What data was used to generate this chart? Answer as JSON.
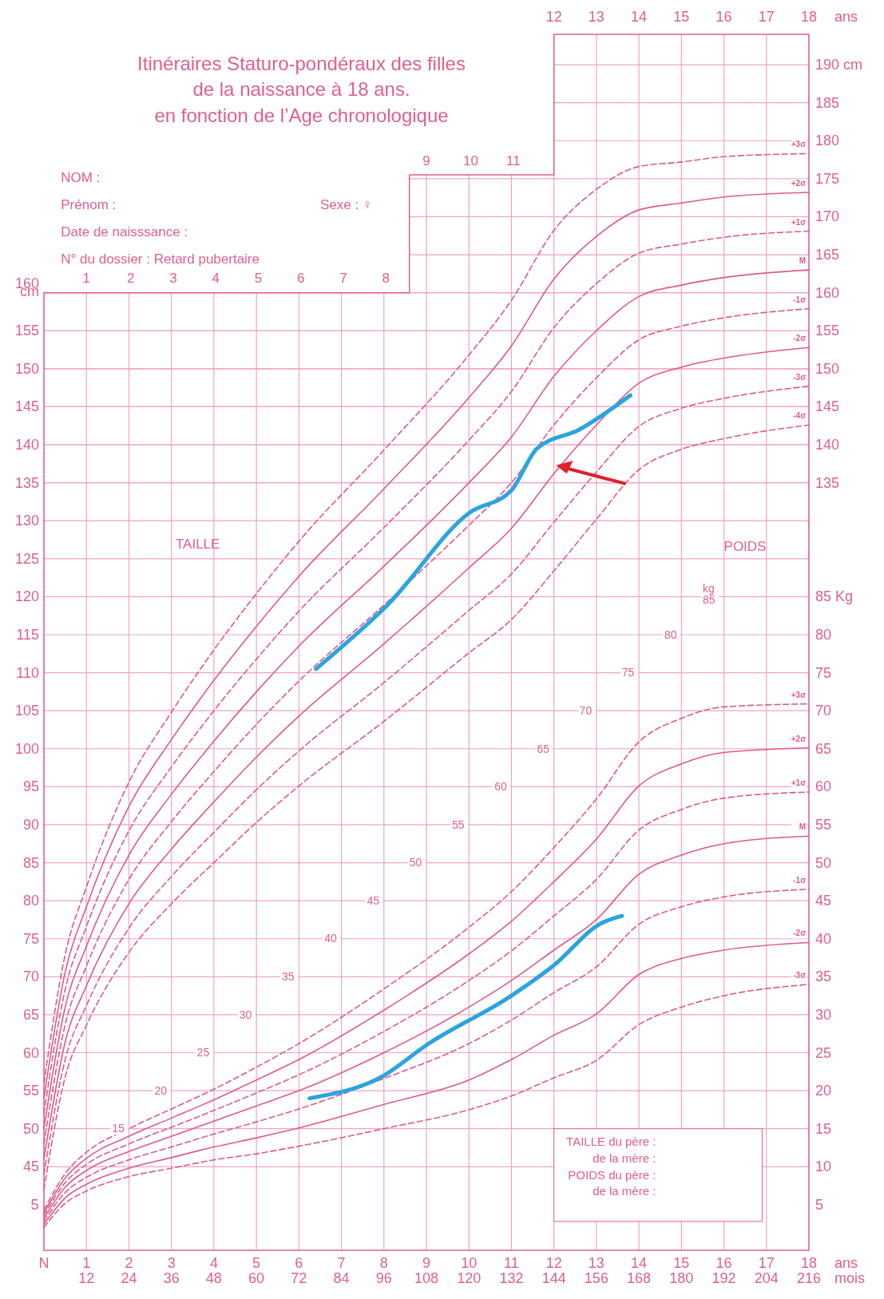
{
  "chart_data": {
    "type": "line",
    "title": "Itinéraires Staturo-pondéraux des filles\nde la naissance à 18 ans.\nen fonction de l’Age chronologique",
    "x": [
      0,
      0.5,
      1,
      2,
      3,
      4,
      5,
      6,
      8,
      10,
      11,
      12,
      13,
      14,
      15,
      16,
      18
    ],
    "xlim": [
      0,
      18
    ],
    "ylim": [
      34,
      194
    ],
    "y2lim": [
      -1,
      159
    ],
    "y3lim": [
      34,
      194
    ],
    "x2lim": [
      0,
      18
    ],
    "xlabel": "ans",
    "x2label": "ans",
    "xticks": [
      {
        "value": 0,
        "label": "N"
      },
      1,
      2,
      3,
      4,
      5,
      6,
      7,
      8,
      9,
      10,
      11,
      12,
      13,
      14,
      15,
      16,
      17,
      18
    ],
    "x2ticks": [
      12,
      13,
      14,
      15,
      16,
      17,
      18
    ],
    "yticks": [
      45,
      50,
      55,
      60,
      65,
      70,
      75,
      80,
      85,
      90,
      95,
      100,
      105,
      110,
      115,
      120,
      125,
      130,
      135,
      140,
      145,
      150,
      155,
      {
        "value": 160,
        "label": "160\ncm"
      }
    ],
    "y3ticks": [
      135,
      140,
      145,
      150,
      155,
      160,
      165,
      170,
      175,
      180,
      185,
      {
        "value": 190,
        "label": "190 cm"
      }
    ],
    "y2ticks": [
      5,
      10,
      15,
      20,
      25,
      30,
      35,
      40,
      45,
      50,
      55,
      60,
      65,
      70,
      75,
      80,
      {
        "value": 85,
        "label": "85 Kg"
      }
    ],
    "grid": true,
    "marker": "none",
    "series": [
      {
        "name": "+3σ",
        "color": "#de5a8a",
        "line_style": "dashed",
        "values": [
          56,
          72.9,
          81.8,
          95.6,
          104.8,
          113,
          120.4,
          127.3,
          139.3,
          151.8,
          159,
          168.2,
          173.6,
          176.6,
          177.2,
          177.9,
          178.3
        ]
      },
      {
        "name": "+2σ",
        "color": "#de5a8a",
        "line_style": "solid",
        "values": [
          54,
          70.6,
          79.2,
          92.4,
          101.2,
          109,
          116.1,
          122.7,
          134.2,
          146.2,
          153,
          161.8,
          167.4,
          170.9,
          171.8,
          172.6,
          173.2
        ]
      },
      {
        "name": "+1σ",
        "color": "#de5a8a",
        "line_style": "dashed",
        "values": [
          52,
          68.3,
          76.6,
          89.2,
          97.6,
          105,
          111.8,
          118.1,
          129.1,
          140.6,
          147,
          155.4,
          161.2,
          165.2,
          166.4,
          167.3,
          168.1
        ]
      },
      {
        "name": "M",
        "color": "#de5a8a",
        "line_style": "solid",
        "values": [
          50,
          66,
          74,
          86,
          94,
          101,
          107.5,
          113.5,
          124,
          135,
          141,
          149,
          155,
          159.5,
          161,
          162,
          163
        ]
      },
      {
        "name": "-1σ",
        "color": "#de5a8a",
        "line_style": "dashed",
        "values": [
          48,
          63.7,
          71.4,
          82.8,
          90.4,
          97,
          103.2,
          108.9,
          118.9,
          129.4,
          135,
          142.6,
          148.8,
          153.8,
          155.6,
          156.7,
          157.9
        ]
      },
      {
        "name": "-2σ",
        "color": "#de5a8a",
        "line_style": "solid",
        "values": [
          46,
          61.4,
          68.8,
          79.6,
          86.8,
          93,
          98.9,
          104.3,
          113.8,
          123.8,
          129,
          136.2,
          142.6,
          148.1,
          150.2,
          151.4,
          152.8
        ]
      },
      {
        "name": "-3σ",
        "color": "#de5a8a",
        "line_style": "dashed",
        "values": [
          44,
          59.1,
          66.2,
          76.4,
          83.2,
          89,
          94.6,
          99.7,
          108.7,
          118.2,
          123,
          129.8,
          136.4,
          142.4,
          144.8,
          146.1,
          147.7
        ]
      },
      {
        "name": "-4σ",
        "color": "#de5a8a",
        "line_style": "dashed",
        "values": [
          42,
          56.8,
          63.6,
          73.2,
          79.6,
          85,
          90.3,
          95.1,
          103.6,
          112.6,
          117,
          123.4,
          130.2,
          136.7,
          139.4,
          140.8,
          142.6
        ]
      },
      {
        "name": "+3σ",
        "color": "#de5a8a",
        "line_style": "dashed",
        "axis": "y2",
        "values": [
          4.3,
          9.1,
          11.9,
          15,
          17.6,
          20.2,
          23.1,
          26.2,
          33.4,
          41.5,
          46.2,
          52,
          58.4,
          65.9,
          69,
          70.5,
          70.9
        ]
      },
      {
        "name": "+2σ",
        "color": "#de5a8a",
        "line_style": "solid",
        "axis": "y2",
        "values": [
          3.9,
          8.5,
          11.1,
          14,
          16.4,
          18.8,
          21.4,
          24.1,
          30.6,
          38,
          42.3,
          47.5,
          53.1,
          60.1,
          63,
          64.5,
          65.1
        ]
      },
      {
        "name": "+1σ",
        "color": "#de5a8a",
        "line_style": "dashed",
        "axis": "y2",
        "values": [
          3.6,
          7.9,
          10.3,
          13,
          15.2,
          17.4,
          19.7,
          22.1,
          27.8,
          34.5,
          38.4,
          43,
          47.8,
          54.3,
          57,
          58.5,
          59.3
        ]
      },
      {
        "name": "M",
        "color": "#de5a8a",
        "line_style": "solid",
        "axis": "y2",
        "values": [
          3.2,
          7.3,
          9.5,
          12,
          14,
          16,
          18,
          20,
          25,
          31,
          34.5,
          38.5,
          42.5,
          48.5,
          51,
          52.5,
          53.5
        ]
      },
      {
        "name": "-1σ",
        "color": "#de5a8a",
        "line_style": "dashed",
        "axis": "y2",
        "values": [
          2.8,
          6.6,
          8.6,
          10.9,
          12.6,
          14.3,
          15.9,
          17.6,
          21.6,
          26.2,
          29.3,
          32.9,
          36.3,
          41.9,
          44.2,
          45.5,
          46.5
        ]
      },
      {
        "name": "-2σ",
        "color": "#de5a8a",
        "line_style": "solid",
        "axis": "y2",
        "values": [
          2.4,
          5.9,
          7.7,
          9.8,
          11.2,
          12.6,
          13.8,
          15.1,
          18.2,
          21.4,
          24.1,
          27.3,
          30.1,
          35.3,
          37.4,
          38.5,
          39.5
        ]
      },
      {
        "name": "-3σ",
        "color": "#de5a8a",
        "line_style": "dashed",
        "axis": "y2",
        "values": [
          2,
          5.2,
          6.8,
          8.7,
          9.8,
          10.9,
          11.7,
          12.7,
          15,
          17.5,
          19.3,
          21.7,
          24,
          28.7,
          31,
          32.5,
          34
        ]
      },
      {
        "color": "#2ba4df",
        "line_style": "solid",
        "x": [
          6.4,
          8.1,
          10,
          11,
          11.6,
          12.6,
          13.8
        ],
        "values": [
          110.5,
          119,
          131,
          134,
          139.5,
          142,
          146.5
        ]
      },
      {
        "color": "#2ba4df",
        "line_style": "solid",
        "axis": "y2",
        "x": [
          6.25,
          8,
          9,
          11,
          12,
          13.1,
          13.6
        ],
        "values": [
          19,
          22,
          26,
          32.5,
          36.5,
          42,
          43
        ]
      }
    ],
    "annotations": [
      "NOM :",
      "Prénom :",
      "Sexe : ♀",
      "Date de naisssance :",
      "N° du dossier : Retard pubertaire",
      "1 2 3 4 5 6 7 8",
      "9 10 11",
      "TAILLE",
      "POIDS",
      "15",
      "20",
      "25",
      "30",
      "35",
      "40",
      "45",
      "50",
      "55",
      "60",
      "65",
      "70",
      "75",
      "80",
      "kg\n85",
      "TAILLE du père :",
      "de la mère :",
      "POIDS du père :",
      "de la mère :",
      "5",
      "12",
      "24",
      "36",
      "48",
      "60",
      "72",
      "84",
      "96",
      "108",
      "120",
      "132",
      "144",
      "156",
      "168",
      "180",
      "192",
      "204",
      "216",
      "mois"
    ]
  }
}
